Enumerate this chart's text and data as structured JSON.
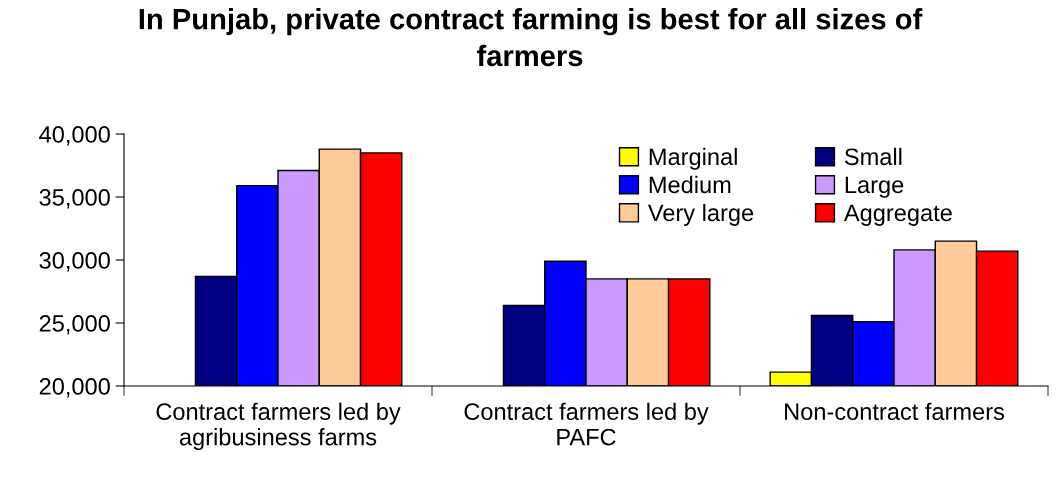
{
  "chart_data": {
    "type": "bar",
    "title": "In Punjab, private contract farming is best for all sizes of farmers",
    "categories": [
      "Contract farmers led by agribusiness farms",
      "Contract farmers led by PAFC",
      "Non-contract farmers"
    ],
    "series": [
      {
        "name": "Marginal",
        "color": "#ffff00",
        "values": [
          null,
          null,
          21100
        ]
      },
      {
        "name": "Small",
        "color": "#000080",
        "values": [
          28700,
          26400,
          25600
        ]
      },
      {
        "name": "Medium",
        "color": "#0000ff",
        "values": [
          35900,
          29900,
          25100
        ]
      },
      {
        "name": "Large",
        "color": "#cc99ff",
        "values": [
          37100,
          28500,
          30800
        ]
      },
      {
        "name": "Very large",
        "color": "#ffcc99",
        "values": [
          38800,
          28500,
          31500
        ]
      },
      {
        "name": "Aggregate",
        "color": "#ff0000",
        "values": [
          38500,
          28500,
          30700
        ]
      }
    ],
    "ylim": [
      20000,
      40000
    ],
    "yticks": [
      {
        "value": 20000,
        "label": "20,000"
      },
      {
        "value": 25000,
        "label": "25,000"
      },
      {
        "value": 30000,
        "label": "30,000"
      },
      {
        "value": 35000,
        "label": "35,000"
      },
      {
        "value": 40000,
        "label": "40,000"
      }
    ],
    "legend": "top right",
    "grid": false
  }
}
